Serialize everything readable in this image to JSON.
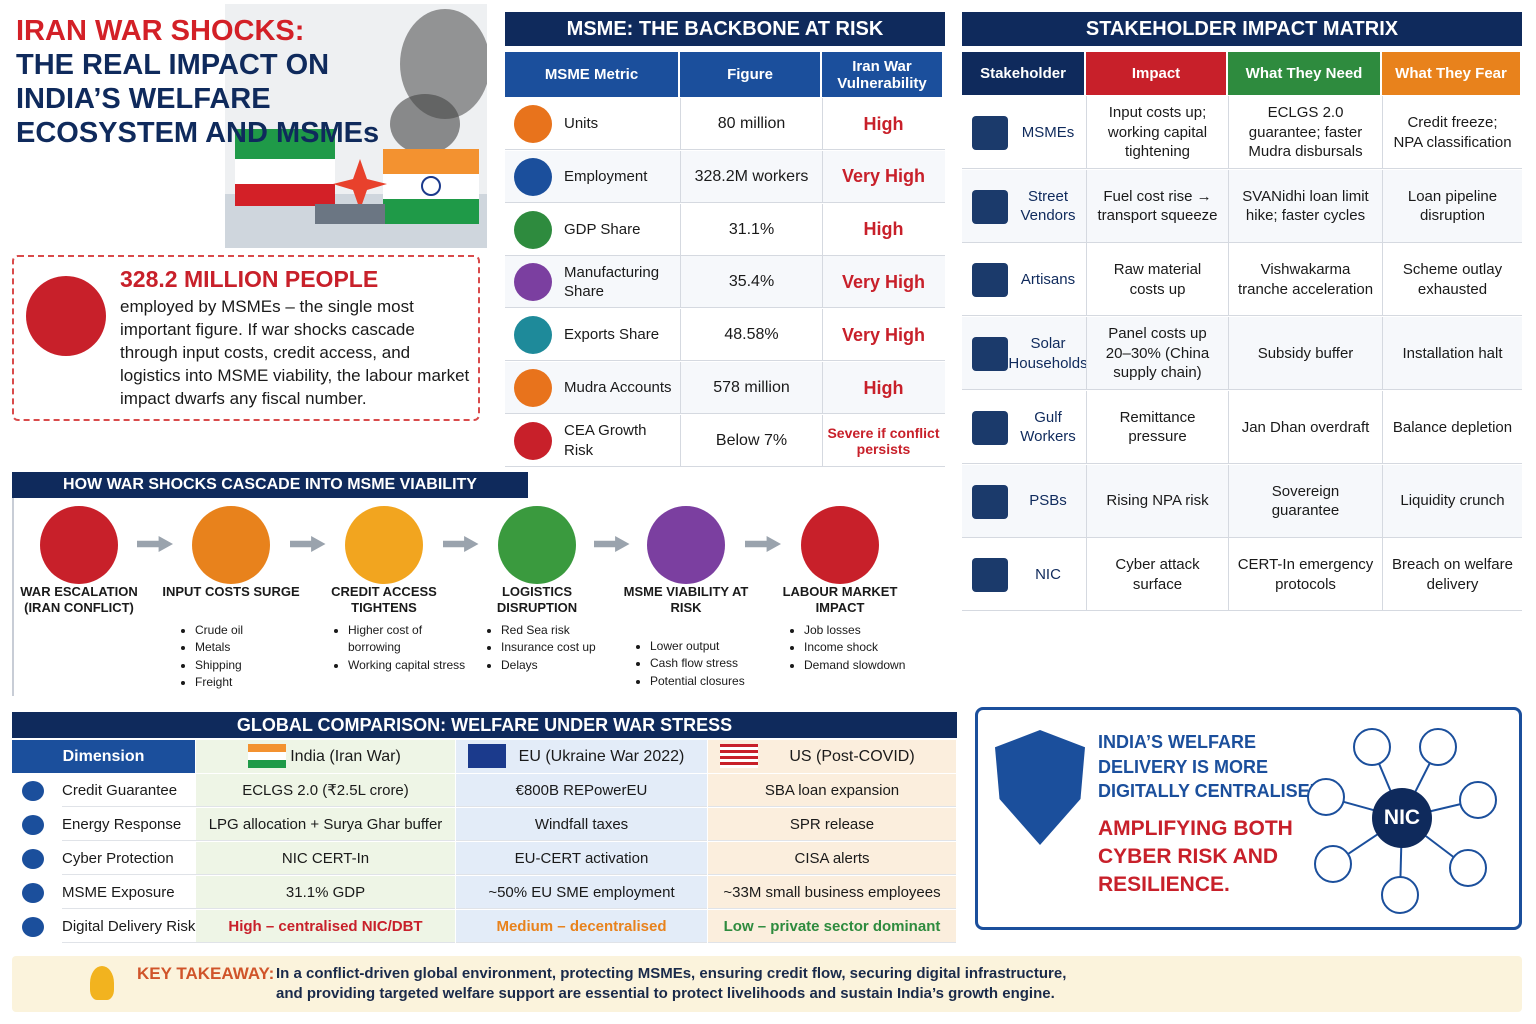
{
  "header": {
    "title_lead": "IRAN WAR SHOCKS:",
    "title_rest": "THE REAL IMPACT ON INDIA’S WELFARE ECOSYSTEM AND MSMEs"
  },
  "callout": {
    "headline": "328.2 MILLION PEOPLE",
    "text": "employed by MSMEs – the single most important figure. If war shocks cascade through input costs, credit access, and logistics into MSME viability, the labour market impact dwarfs any fiscal number."
  },
  "msme_table": {
    "title": "MSME: THE BACKBONE AT RISK",
    "columns": [
      "MSME Metric",
      "Figure",
      "Iran War Vulnerability"
    ],
    "rows": [
      [
        "Units",
        "80 million",
        "High"
      ],
      [
        "Employment",
        "328.2M workers",
        "Very High"
      ],
      [
        "GDP Share",
        "31.1%",
        "High"
      ],
      [
        "Manufacturing Share",
        "35.4%",
        "Very High"
      ],
      [
        "Exports Share",
        "48.58%",
        "Very High"
      ],
      [
        "Mudra Accounts",
        "578 million",
        "High"
      ],
      [
        "CEA Growth Risk",
        "Below 7%",
        "Severe if conflict persists"
      ]
    ]
  },
  "cascade": {
    "title": "HOW WAR SHOCKS CASCADE INTO MSME VIABILITY",
    "steps": [
      {
        "label": "WAR ESCALATION (IRAN CONFLICT)",
        "bullets": []
      },
      {
        "label": "INPUT COSTS SURGE",
        "bullets": [
          "Crude oil",
          "Metals",
          "Shipping",
          "Freight"
        ]
      },
      {
        "label": "CREDIT ACCESS TIGHTENS",
        "bullets": [
          "Higher cost of borrowing",
          "Working capital stress"
        ]
      },
      {
        "label": "LOGISTICS DISRUPTION",
        "bullets": [
          "Red Sea risk",
          "Insurance cost up",
          "Delays"
        ]
      },
      {
        "label": "MSME VIABILITY AT RISK",
        "bullets": [
          "Lower output",
          "Cash flow stress",
          "Potential closures"
        ]
      },
      {
        "label": "LABOUR MARKET IMPACT",
        "bullets": [
          "Job losses",
          "Income shock",
          "Demand slowdown"
        ]
      }
    ]
  },
  "matrix": {
    "title": "STAKEHOLDER IMPACT MATRIX",
    "columns": [
      "Stakeholder",
      "Impact",
      "What They Need",
      "What They Fear"
    ],
    "rows": [
      [
        "MSMEs",
        "Input costs up; working capital tightening",
        "ECLGS 2.0 guarantee; faster Mudra disbursals",
        "Credit freeze; NPA classification"
      ],
      [
        "Street Vendors",
        "Fuel cost rise → transport squeeze",
        "SVANidhi loan limit hike; faster cycles",
        "Loan pipeline disruption"
      ],
      [
        "Artisans",
        "Raw material costs up",
        "Vishwakarma tranche acceleration",
        "Scheme outlay exhausted"
      ],
      [
        "Solar Households",
        "Panel costs up 20–30% (China supply chain)",
        "Subsidy buffer",
        "Installation halt"
      ],
      [
        "Gulf Workers",
        "Remittance pressure",
        "Jan Dhan overdraft",
        "Balance depletion"
      ],
      [
        "PSBs",
        "Rising NPA risk",
        "Sovereign guarantee",
        "Liquidity crunch"
      ],
      [
        "NIC",
        "Cyber attack surface",
        "CERT-In emergency protocols",
        "Breach on welfare delivery"
      ]
    ]
  },
  "comparison": {
    "title": "GLOBAL COMPARISON: WELFARE UNDER WAR STRESS",
    "columns": [
      "Dimension",
      "India (Iran War)",
      "EU (Ukraine War 2022)",
      "US (Post-COVID)"
    ],
    "rows": [
      [
        "Credit Guarantee",
        "ECLGS 2.0 (₹2.5L crore)",
        "€800B REPowerEU",
        "SBA loan expansion"
      ],
      [
        "Energy Response",
        "LPG allocation + Surya Ghar buffer",
        "Windfall taxes",
        "SPR release"
      ],
      [
        "Cyber Protection",
        "NIC CERT-In",
        "EU-CERT activation",
        "CISA alerts"
      ],
      [
        "MSME Exposure",
        "31.1% GDP",
        "~50% EU SME employment",
        "~33M small business employees"
      ],
      [
        "Digital Delivery Risk",
        "High – centralised NIC/DBT",
        "Medium – decentralised",
        "Low – private sector dominant"
      ]
    ]
  },
  "nic_panel": {
    "statement": "INDIA’S WELFARE DELIVERY IS MORE DIGITALLY CENTRALISED –",
    "emphasis": "AMPLIFYING BOTH CYBER RISK AND RESILIENCE.",
    "hub": "NIC"
  },
  "takeaway": {
    "label": "KEY TAKEAWAY:",
    "text": "In a conflict-driven global environment, protecting MSMEs, ensuring credit flow, securing digital infrastructure, and providing targeted welfare support are essential to protect livelihoods and sustain India’s growth engine."
  }
}
